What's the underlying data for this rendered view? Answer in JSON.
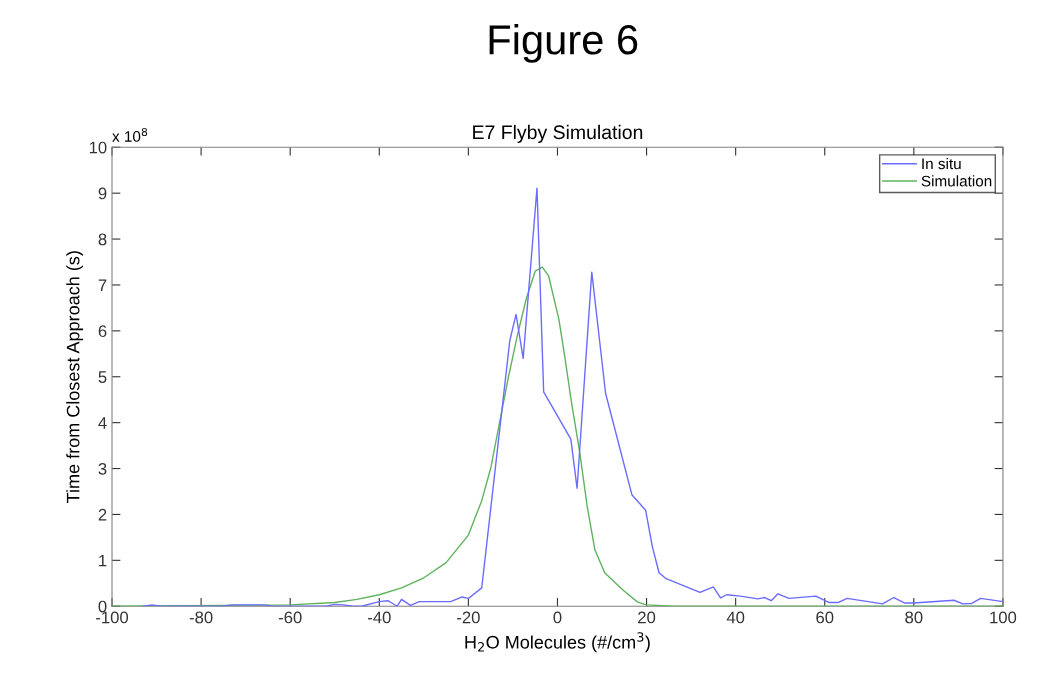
{
  "chart_data": {
    "type": "line",
    "title": "Figure 6",
    "subtitle": "E7 Flyby Simulation",
    "xlabel": "H$_{2}$O Molecules (#/cm$^{3}$)",
    "ylabel": "Time from Closest Approach (s)",
    "annotations": [
      "x 10$^{8}$"
    ],
    "xlim": [
      -100,
      100
    ],
    "xticks": [
      -100,
      -80,
      -60,
      -40,
      -20,
      0,
      20,
      40,
      60,
      80,
      100
    ],
    "ylim": [
      0,
      10
    ],
    "yticks": [
      0,
      1,
      2,
      3,
      4,
      5,
      6,
      7,
      8,
      9,
      10
    ],
    "grid": false,
    "legend": "top right",
    "marker": "none",
    "line_style": "solid",
    "series": [
      {
        "name": "In situ",
        "color": "#6b6bff",
        "x": [
          -93,
          -91,
          -89,
          -75,
          -73,
          -66,
          -64,
          -52,
          -50,
          -48,
          -46,
          -44,
          -40,
          -38,
          -36,
          -35,
          -33,
          -31,
          -24,
          -21.5,
          -20,
          -17,
          -10.7,
          -9.3,
          -7.7,
          -4.6,
          -3.1,
          3.0,
          4.4,
          7.7,
          10.8,
          16.7,
          19.8,
          21.3,
          22.8,
          24.4,
          32.0,
          35.0,
          36.6,
          38,
          41,
          45,
          46.5,
          48,
          49.5,
          52,
          58,
          61,
          63,
          65,
          73,
          75.5,
          78,
          80,
          89,
          91,
          93,
          95,
          100
        ],
        "values": [
          0,
          0.03,
          0,
          0,
          0.03,
          0.03,
          0,
          0,
          0.04,
          0.03,
          0,
          0,
          0.1,
          0.12,
          0,
          0.15,
          0.02,
          0.1,
          0.1,
          0.2,
          0.17,
          0.4,
          5.79,
          6.36,
          5.4,
          9.11,
          4.67,
          3.64,
          2.57,
          7.28,
          4.64,
          2.43,
          2.09,
          1.3,
          0.73,
          0.6,
          0.3,
          0.42,
          0.18,
          0.25,
          0.22,
          0.16,
          0.19,
          0.12,
          0.27,
          0.17,
          0.22,
          0.08,
          0.08,
          0.17,
          0.05,
          0.19,
          0.07,
          0.07,
          0.13,
          0.05,
          0.06,
          0.17,
          0.1
        ]
      },
      {
        "name": "Simulation",
        "color": "#5fb35f",
        "x": [
          -100,
          -60,
          -50,
          -45,
          -40,
          -35,
          -30,
          -25,
          -20,
          -17,
          -15,
          -13,
          -11,
          -9,
          -7,
          -5,
          -3.4,
          -2,
          0.3,
          1.7,
          3.1,
          5.0,
          6.7,
          8.4,
          10.6,
          14.5,
          18.0,
          20,
          26,
          100
        ],
        "values": [
          0,
          0.03,
          0.08,
          0.15,
          0.25,
          0.4,
          0.62,
          0.95,
          1.55,
          2.3,
          3.0,
          4.0,
          5.0,
          5.9,
          6.7,
          7.3,
          7.39,
          7.2,
          6.26,
          5.4,
          4.47,
          3.35,
          2.16,
          1.23,
          0.73,
          0.37,
          0.09,
          0.03,
          0,
          0
        ]
      }
    ]
  }
}
